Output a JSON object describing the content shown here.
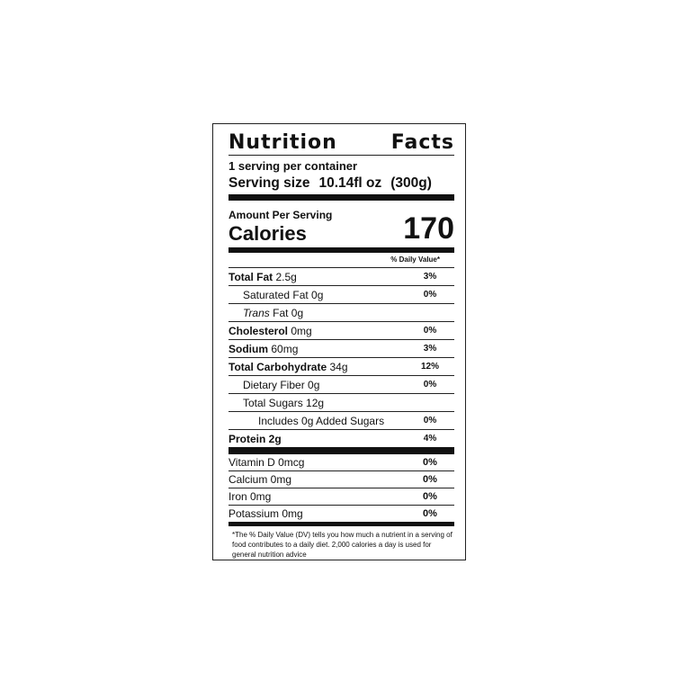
{
  "title": [
    "Nutrition",
    "Facts"
  ],
  "servings_per_container": "1 serving per container",
  "serving_size": {
    "label": "Serving size",
    "value": "10.14fl oz",
    "grams": "(300g)"
  },
  "amount_per_serving": "Amount Per Serving",
  "calories": {
    "label": "Calories",
    "value": "170"
  },
  "daily_value_header": "% Daily Value*",
  "nutrients": [
    {
      "bold": "Total Fat",
      "amount": "2.5g",
      "pct": "3%",
      "indent": 0,
      "all_bold": false
    },
    {
      "bold": "",
      "amount": "Saturated Fat 0g",
      "pct": "0%",
      "indent": 1
    },
    {
      "italic": "Trans",
      "amount": " Fat 0g",
      "pct": "",
      "indent": 1
    },
    {
      "bold": "Cholesterol",
      "amount": "0mg",
      "pct": "0%",
      "indent": 0
    },
    {
      "bold": "Sodium",
      "amount": "60mg",
      "pct": "3%",
      "indent": 0
    },
    {
      "bold": "Total Carbohydrate",
      "amount": "34g",
      "pct": "12%",
      "indent": 0
    },
    {
      "bold": "",
      "amount": "Dietary Fiber 0g",
      "pct": "0%",
      "indent": 1
    },
    {
      "bold": "",
      "amount": "Total Sugars  12g",
      "pct": "",
      "indent": 1
    },
    {
      "bold": "",
      "amount": "Includes 0g Added Sugars",
      "pct": "0%",
      "indent": 2
    },
    {
      "bold": "Protein 2g",
      "amount": "",
      "pct": "4%",
      "indent": 0
    }
  ],
  "vitamins": [
    {
      "name": "Vitamin D 0mcg",
      "pct": "0%"
    },
    {
      "name": "Calcium 0mg",
      "pct": "0%"
    },
    {
      "name": "Iron 0mg",
      "pct": "0%"
    },
    {
      "name": "Potassium 0mg",
      "pct": "0%"
    }
  ],
  "footnote": "*The % Daily Value (DV) tells you how much a nutrient in a serving of food contributes to a daily diet. 2,000 calories a day is used for general nutrition advice"
}
